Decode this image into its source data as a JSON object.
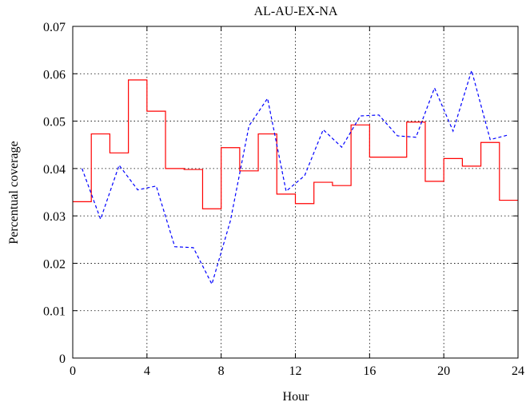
{
  "chart_data": {
    "type": "line",
    "title": "AL-AU-EX-NA",
    "xlabel": "Hour",
    "ylabel": "Percentual coverage",
    "xlim": [
      0,
      24
    ],
    "ylim": [
      0,
      0.07
    ],
    "xticks": [
      "0",
      "4",
      "8",
      "12",
      "16",
      "20",
      "24"
    ],
    "yticks": [
      "0",
      "0.01",
      "0.02",
      "0.03",
      "0.04",
      "0.05",
      "0.06",
      "0.07"
    ],
    "grid": true,
    "legend": "none",
    "series": [
      {
        "style": "step",
        "color": "#ff0000",
        "dash": "solid",
        "values": [
          0.033,
          0.0473,
          0.0433,
          0.0587,
          0.0521,
          0.04,
          0.0398,
          0.0315,
          0.0444,
          0.0395,
          0.0473,
          0.0346,
          0.0326,
          0.0371,
          0.0364,
          0.0492,
          0.0424,
          0.0424,
          0.0498,
          0.0373,
          0.0421,
          0.0405,
          0.0455,
          0.0333
        ]
      },
      {
        "style": "line",
        "color": "#0000ff",
        "dash": "dashed",
        "x": [
          0.5,
          1.5,
          2.5,
          3.5,
          4.5,
          5.5,
          6.5,
          7.5,
          8.5,
          9.5,
          10.5,
          11.5,
          12.5,
          13.5,
          14.5,
          15.5,
          16.5,
          17.5,
          18.5,
          19.5,
          20.5,
          21.5,
          22.5,
          23.5
        ],
        "values": [
          0.04,
          0.0293,
          0.0407,
          0.0355,
          0.0363,
          0.0235,
          0.0233,
          0.0156,
          0.029,
          0.049,
          0.0548,
          0.0352,
          0.0385,
          0.0482,
          0.0445,
          0.0511,
          0.0513,
          0.0469,
          0.0466,
          0.057,
          0.0479,
          0.0607,
          0.0461,
          0.0471
        ]
      }
    ]
  }
}
